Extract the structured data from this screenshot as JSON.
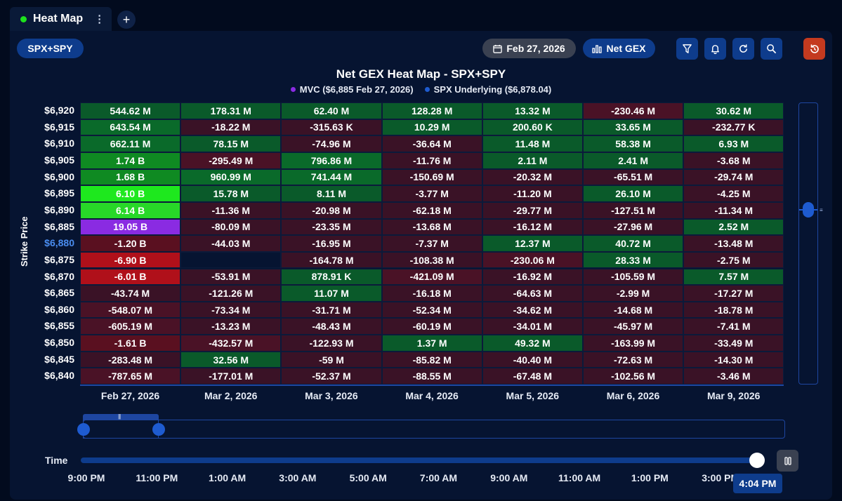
{
  "tab": {
    "title": "Heat Map",
    "more": "⋮",
    "add": "+"
  },
  "symbol": "SPX+SPY",
  "toolbar": {
    "date": "Feb 27, 2026",
    "metric": "Net GEX"
  },
  "chart_data": {
    "type": "heatmap",
    "title": "Net GEX Heat Map - SPX+SPY",
    "legend": [
      {
        "label": "MVC ($6,885 Feb 27, 2026)",
        "color": "#8a2be2"
      },
      {
        "label": "SPX Underlying ($6,878.04)",
        "color": "#1e5bd0"
      }
    ],
    "ylabel": "Strike Price",
    "highlight_strike": "$6,880",
    "x": [
      "Feb 27, 2026",
      "Mar 2, 2026",
      "Mar 3, 2026",
      "Mar 4, 2026",
      "Mar 5, 2026",
      "Mar 6, 2026",
      "Mar 9, 2026"
    ],
    "y": [
      "$6,920",
      "$6,915",
      "$6,910",
      "$6,905",
      "$6,900",
      "$6,895",
      "$6,890",
      "$6,885",
      "$6,880",
      "$6,875",
      "$6,870",
      "$6,865",
      "$6,860",
      "$6,855",
      "$6,850",
      "$6,845",
      "$6,840"
    ],
    "values": [
      [
        "544.62 M",
        "178.31 M",
        "62.40 M",
        "128.28 M",
        "13.32 M",
        "-230.46 M",
        "30.62 M"
      ],
      [
        "643.54 M",
        "-18.22 M",
        "-315.63 K",
        "10.29 M",
        "200.60 K",
        "33.65 M",
        "-232.77 K"
      ],
      [
        "662.11 M",
        "78.15 M",
        "-74.96 M",
        "-36.64 M",
        "11.48 M",
        "58.38 M",
        "6.93 M"
      ],
      [
        "1.74 B",
        "-295.49 M",
        "796.86 M",
        "-11.76 M",
        "2.11 M",
        "2.41 M",
        "-3.68 M"
      ],
      [
        "1.68 B",
        "960.99 M",
        "741.44 M",
        "-150.69 M",
        "-20.32 M",
        "-65.51 M",
        "-29.74 M"
      ],
      [
        "6.10 B",
        "15.78 M",
        "8.11 M",
        "-3.77 M",
        "-11.20 M",
        "26.10 M",
        "-4.25 M"
      ],
      [
        "6.14 B",
        "-11.36 M",
        "-20.98 M",
        "-62.18 M",
        "-29.77 M",
        "-127.51 M",
        "-11.34 M"
      ],
      [
        "19.05 B",
        "-80.09 M",
        "-23.35 M",
        "-13.68 M",
        "-16.12 M",
        "-27.96 M",
        "2.52 M"
      ],
      [
        "-1.20 B",
        "-44.03 M",
        "-16.95 M",
        "-7.37 M",
        "12.37 M",
        "40.72 M",
        "-13.48 M"
      ],
      [
        "-6.90 B",
        "",
        "-164.78 M",
        "-108.38 M",
        "-230.06 M",
        "28.33 M",
        "-2.75 M"
      ],
      [
        "-6.01 B",
        "-53.91 M",
        "878.91 K",
        "-421.09 M",
        "-16.92 M",
        "-105.59 M",
        "7.57 M"
      ],
      [
        "-43.74 M",
        "-121.26 M",
        "11.07 M",
        "-16.18 M",
        "-64.63 M",
        "-2.99 M",
        "-17.27 M"
      ],
      [
        "-548.07 M",
        "-73.34 M",
        "-31.71 M",
        "-52.34 M",
        "-34.62 M",
        "-14.68 M",
        "-18.78 M"
      ],
      [
        "-605.19 M",
        "-13.23 M",
        "-48.43 M",
        "-60.19 M",
        "-34.01 M",
        "-45.97 M",
        "-7.41 M"
      ],
      [
        "-1.61 B",
        "-432.57 M",
        "-122.93 M",
        "1.37 M",
        "49.32 M",
        "-163.99 M",
        "-33.49 M"
      ],
      [
        "-283.48 M",
        "32.56 M",
        "-59 M",
        "-85.82 M",
        "-40.40 M",
        "-72.63 M",
        "-14.30 M"
      ],
      [
        "-787.65 M",
        "-177.01 M",
        "-52.37 M",
        "-88.55 M",
        "-67.48 M",
        "-102.56 M",
        "-3.46 M"
      ]
    ],
    "colors": [
      [
        "#0a5a2a",
        "#0a5a2a",
        "#0a5a2a",
        "#0a5a2a",
        "#0a5a2a",
        "#4a1226",
        "#0a5a2a"
      ],
      [
        "#0a6a2a",
        "#3a1226",
        "#3a1226",
        "#0a5a2a",
        "#0a5a2a",
        "#0a5a2a",
        "#3a1226"
      ],
      [
        "#0a6a2a",
        "#0a5a2a",
        "#3a1226",
        "#3a1226",
        "#0a5a2a",
        "#0a5a2a",
        "#0a5a2a"
      ],
      [
        "#0f8a22",
        "#4a1226",
        "#0a6a2a",
        "#3a1226",
        "#0a5a2a",
        "#0a5a2a",
        "#3a1226"
      ],
      [
        "#0f8a22",
        "#0a6a2a",
        "#0a6a2a",
        "#3a1226",
        "#3a1226",
        "#3a1226",
        "#3a1226"
      ],
      [
        "#1ee81e",
        "#0a5a2a",
        "#0a5a2a",
        "#3a1226",
        "#3a1226",
        "#0a5a2a",
        "#3a1226"
      ],
      [
        "#28d828",
        "#3a1226",
        "#3a1226",
        "#3a1226",
        "#3a1226",
        "#3a1226",
        "#3a1226"
      ],
      [
        "#8a2be2",
        "#3a1226",
        "#3a1226",
        "#3a1226",
        "#3a1226",
        "#3a1226",
        "#0a5a2a"
      ],
      [
        "#5a1020",
        "#3a1226",
        "#3a1226",
        "#3a1226",
        "#0a5a2a",
        "#0a5a2a",
        "#3a1226"
      ],
      [
        "#b0101a",
        "#061431",
        "#3a1226",
        "#3a1226",
        "#4a1226",
        "#0a5a2a",
        "#3a1226"
      ],
      [
        "#b0101a",
        "#3a1226",
        "#0a5a2a",
        "#4a1226",
        "#3a1226",
        "#3a1226",
        "#0a5a2a"
      ],
      [
        "#3a1226",
        "#3a1226",
        "#0a5a2a",
        "#3a1226",
        "#3a1226",
        "#3a1226",
        "#3a1226"
      ],
      [
        "#4a1226",
        "#3a1226",
        "#3a1226",
        "#3a1226",
        "#3a1226",
        "#3a1226",
        "#3a1226"
      ],
      [
        "#4a1226",
        "#3a1226",
        "#3a1226",
        "#3a1226",
        "#3a1226",
        "#3a1226",
        "#3a1226"
      ],
      [
        "#5a1020",
        "#4a1226",
        "#3a1226",
        "#0a5a2a",
        "#0a5a2a",
        "#3a1226",
        "#3a1226"
      ],
      [
        "#3a1226",
        "#0a5a2a",
        "#3a1226",
        "#3a1226",
        "#3a1226",
        "#3a1226",
        "#3a1226"
      ],
      [
        "#4a1226",
        "#3a1226",
        "#3a1226",
        "#3a1226",
        "#3a1226",
        "#3a1226",
        "#3a1226"
      ]
    ]
  },
  "time": {
    "label": "Time",
    "ticks": [
      "9:00 PM",
      "11:00 PM",
      "1:00 AM",
      "3:00 AM",
      "5:00 AM",
      "7:00 AM",
      "9:00 AM",
      "11:00 AM",
      "1:00 PM",
      "3:00 PM"
    ],
    "current": "4:04 PM",
    "progress": 0.99
  },
  "icons": {
    "calendar": "calendar-icon",
    "chart": "bar-chart-icon",
    "filter": "filter-icon",
    "bell": "bell-icon",
    "refresh": "refresh-icon",
    "zoom": "zoom-icon",
    "reset": "reset-icon",
    "pause": "pause-icon"
  }
}
